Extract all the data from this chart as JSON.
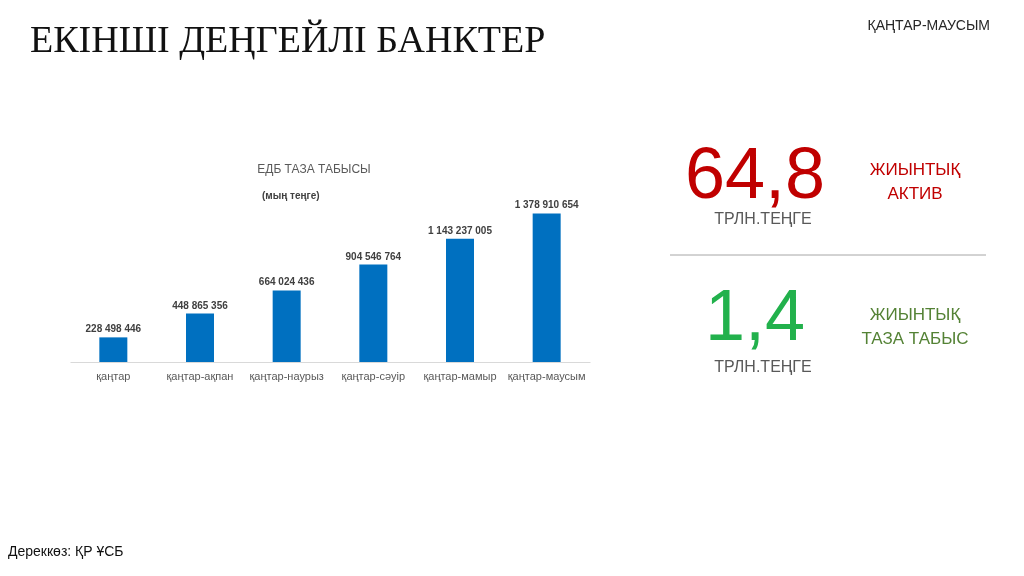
{
  "chart_data": [
    {
      "type": "bar",
      "title": "ЕДБ ТАЗА ТАБЫСЫ",
      "subtitle": "(мың теңге)",
      "categories": [
        "қаңтар",
        "қаңтар-ақпан",
        "қаңтар-наурыз",
        "қаңтар-сәуір",
        "қаңтар-мамыр",
        "қаңтар-маусым"
      ],
      "values": [
        228498446,
        448865356,
        664024436,
        904546764,
        1143237005,
        1378910654
      ],
      "value_labels": [
        "228 498 446",
        "448 865 356",
        "664 024 436",
        "904 546 764",
        "1 143 237 005",
        "1 378 910 654"
      ],
      "color": "#0070c0",
      "annotations": [
        "ЕКІНШІ ДЕҢГЕЙЛІ БАНКТЕР",
        "ҚАҢТАР-МАУСЫМ",
        "Дереккөз: ҚР ҰСБ"
      ]
    },
    {
      "type": "other",
      "annotations": [
        "64,8",
        "ТРЛН.ТЕҢГЕ",
        "ЖИЫНТЫҚ\nАКТИВ",
        "1,4",
        "ТРЛН.ТЕҢГЕ",
        "ЖИЫНТЫҚ\nТАЗА ТАБЫС"
      ]
    }
  ]
}
